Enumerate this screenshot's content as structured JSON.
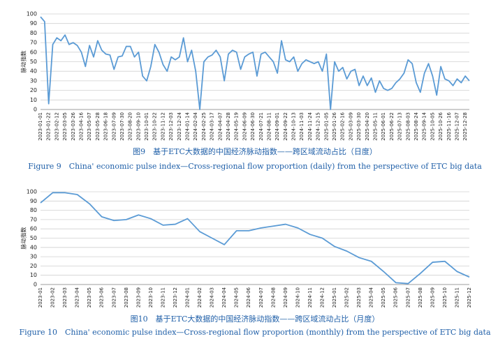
{
  "chart_data": [
    {
      "type": "line",
      "title": "图9　基于ETC大数据的中国经济脉动指数——跨区域流动占比（日度）",
      "subtitle": "Figure 9　China' economic pulse index—Cross-regional flow proportion (daily) from the perspective of ETC big data",
      "y_label": "脉动指数",
      "color": "#5b9bd5",
      "grid": true,
      "ylim": [
        0,
        100
      ],
      "yticks": [
        0,
        10,
        20,
        30,
        40,
        50,
        60,
        70,
        80,
        90,
        100
      ],
      "categories": [
        "2023-01-01",
        null,
        "2023-01-22",
        null,
        "2023-02-12",
        null,
        "2023-03-05",
        null,
        "2023-03-26",
        null,
        "2023-04-16",
        null,
        "2023-05-07",
        null,
        "2023-05-28",
        null,
        "2023-06-18",
        null,
        "2023-07-09",
        null,
        "2023-07-30",
        null,
        "2023-08-20",
        null,
        "2023-09-10",
        null,
        "2023-10-01",
        null,
        "2023-10-22",
        null,
        "2023-11-12",
        null,
        "2023-12-03",
        null,
        "2023-12-24",
        null,
        "2024-01-14",
        null,
        "2024-02-04",
        null,
        "2024-02-25",
        null,
        "2024-03-17",
        null,
        "2024-04-07",
        null,
        "2024-04-28",
        null,
        "2024-05-19",
        null,
        "2024-06-09",
        null,
        "2024-06-30",
        null,
        "2024-07-21",
        null,
        "2024-08-11",
        null,
        "2024-09-01",
        null,
        "2024-09-22",
        null,
        "2024-10-13",
        null,
        "2024-11-03",
        null,
        "2024-11-24",
        null,
        "2024-12-15",
        null,
        "2025-01-05",
        null,
        "2025-01-26",
        null,
        "2025-02-16",
        null,
        "2025-03-09",
        null,
        "2025-03-30",
        null,
        "2025-04-20",
        null,
        "2025-05-11",
        null,
        "2025-06-01",
        null,
        "2025-06-22",
        null,
        "2025-07-13",
        null,
        "2025-08-03",
        null,
        "2025-08-24",
        null,
        "2025-09-14",
        null,
        "2025-10-05",
        null,
        "2025-10-26",
        null,
        "2025-11-16",
        null,
        "2025-12-07",
        null,
        "2025-12-28",
        null
      ],
      "values": [
        97,
        92,
        6,
        68,
        75,
        72,
        78,
        68,
        70,
        67,
        60,
        45,
        67,
        55,
        72,
        62,
        58,
        57,
        42,
        55,
        56,
        66,
        66,
        55,
        60,
        35,
        30,
        45,
        68,
        60,
        47,
        40,
        55,
        52,
        55,
        75,
        50,
        62,
        40,
        0,
        50,
        55,
        57,
        62,
        55,
        30,
        58,
        62,
        60,
        42,
        55,
        58,
        60,
        35,
        58,
        60,
        55,
        50,
        38,
        72,
        52,
        50,
        55,
        40,
        48,
        52,
        50,
        48,
        50,
        40,
        58,
        0,
        50,
        40,
        44,
        32,
        40,
        42,
        25,
        35,
        25,
        33,
        18,
        30,
        22,
        20,
        22,
        28,
        32,
        38,
        52,
        48,
        28,
        18,
        38,
        48,
        35,
        15,
        45,
        32,
        30,
        25,
        32,
        28,
        35,
        30
      ]
    },
    {
      "type": "line",
      "title": "图10　基于ETC大数据的中国经济脉动指数——跨区域流动占比（月度）",
      "subtitle": "Figure 10　China' economic pulse index—Cross-regional flow proportion (monthly) from the perspective of ETC big data",
      "y_label": "脉动指数",
      "color": "#5b9bd5",
      "grid": true,
      "ylim": [
        0,
        100
      ],
      "yticks": [
        0,
        10,
        20,
        30,
        40,
        50,
        60,
        70,
        80,
        90,
        100
      ],
      "categories": [
        "2023-01",
        "2023-02",
        "2023-03",
        "2023-04",
        "2023-05",
        "2023-06",
        "2023-07",
        "2023-08",
        "2023-09",
        "2023-10",
        "2023-11",
        "2023-12",
        "2024-01",
        "2024-02",
        "2024-03",
        "2024-04",
        "2024-05",
        "2024-06",
        "2024-07",
        "2024-08",
        "2024-09",
        "2024-10",
        "2024-11",
        "2024-12",
        "2025-01",
        "2025-02",
        "2025-03",
        "2025-04",
        "2025-05",
        "2025-06",
        "2025-07",
        "2025-08",
        "2025-09",
        "2025-10",
        "2025-11",
        "2025-12"
      ],
      "values": [
        88,
        99,
        99,
        97,
        87,
        73,
        69,
        70,
        75,
        71,
        64,
        65,
        71,
        57,
        50,
        43,
        58,
        58,
        61,
        63,
        65,
        61,
        54,
        50,
        41,
        36,
        29,
        25,
        14,
        2,
        1,
        12,
        24,
        25,
        14,
        8
      ]
    }
  ]
}
